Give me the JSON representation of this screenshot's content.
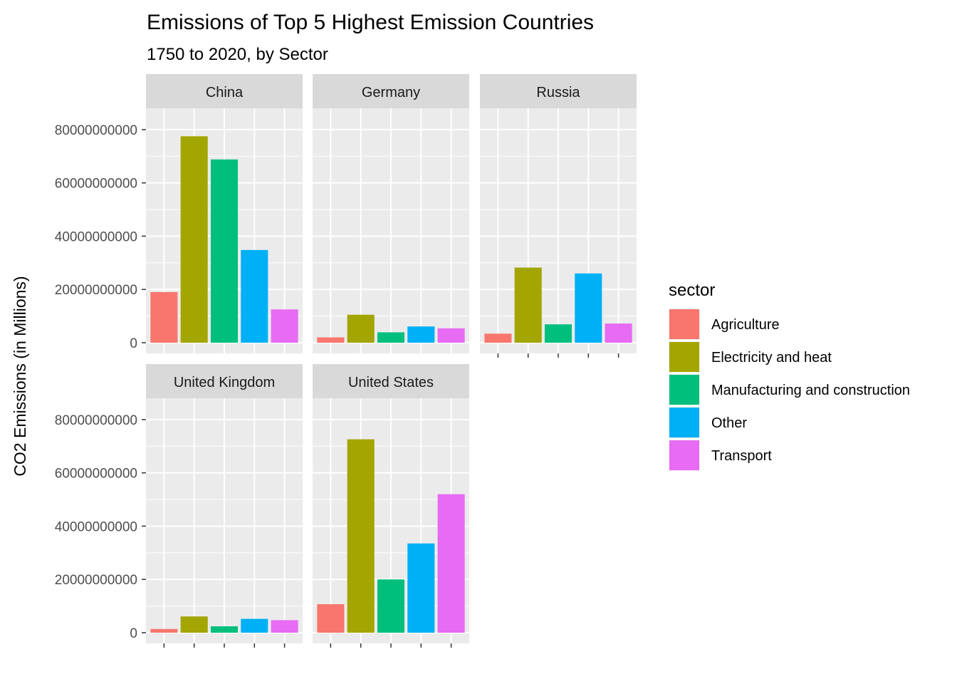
{
  "chart_data": {
    "type": "bar",
    "title": "Emissions of Top 5 Highest Emission Countries",
    "subtitle": "1750 to 2020, by Sector",
    "ylabel": "CO2 Emissions (in Millions)",
    "xlabel": "",
    "ylim": [
      0,
      88000000000
    ],
    "yticks": [
      0,
      20000000000,
      40000000000,
      60000000000,
      80000000000
    ],
    "ytick_labels": [
      "0",
      "20000000000",
      "40000000000",
      "60000000000",
      "80000000000"
    ],
    "grid": true,
    "facet_layout": "2 rows x 3 columns",
    "legend": {
      "title": "sector",
      "position": "right"
    },
    "categories": [
      "Agriculture",
      "Electricity and heat",
      "Manufacturing and construction",
      "Other",
      "Transport"
    ],
    "colors": {
      "Agriculture": "#F8766D",
      "Electricity and heat": "#A3A500",
      "Manufacturing and construction": "#00BF7D",
      "Other": "#00B0F6",
      "Transport": "#E76BF3"
    },
    "facets": [
      {
        "name": "China",
        "values": [
          19000000000,
          77500000000,
          68800000000,
          34800000000,
          12500000000
        ]
      },
      {
        "name": "Germany",
        "values": [
          2000000000,
          10500000000,
          3900000000,
          6100000000,
          5400000000
        ]
      },
      {
        "name": "Russia",
        "values": [
          3400000000,
          28200000000,
          6900000000,
          26000000000,
          7200000000
        ]
      },
      {
        "name": "United Kingdom",
        "values": [
          1400000000,
          6100000000,
          2400000000,
          5200000000,
          4700000000
        ]
      },
      {
        "name": "United States",
        "values": [
          10700000000,
          72600000000,
          20000000000,
          33500000000,
          52000000000
        ]
      }
    ]
  }
}
